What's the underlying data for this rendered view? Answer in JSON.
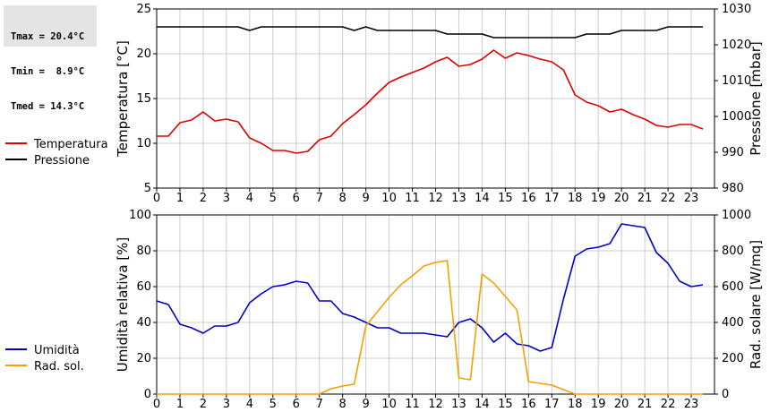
{
  "stats": {
    "tmax": "Tmax = 20.4°C",
    "tmin": "Tmin =  8.9°C",
    "tmed": "Tmed = 14.3°C"
  },
  "chart_data": [
    {
      "type": "line",
      "xlabel": "",
      "ylabel": "Temperatura [°C]",
      "y2label": "Pressione [mbar]",
      "xlim": [
        0,
        24
      ],
      "ylim": [
        5,
        25
      ],
      "y2lim": [
        980,
        1030
      ],
      "xticks": [
        "0",
        "1",
        "2",
        "3",
        "4",
        "5",
        "6",
        "7",
        "8",
        "9",
        "10",
        "11",
        "12",
        "13",
        "14",
        "15",
        "16",
        "17",
        "18",
        "19",
        "20",
        "21",
        "22",
        "23"
      ],
      "yticks": [
        "5",
        "10",
        "15",
        "20",
        "25"
      ],
      "y2ticks": [
        "980",
        "990",
        "1000",
        "1010",
        "1020",
        "1030"
      ],
      "grid": true,
      "legend": "left",
      "series": [
        {
          "name": "Temperatura",
          "color": "#dd0000",
          "axis": "left",
          "x": [
            0,
            0.5,
            1,
            1.5,
            2,
            2.5,
            3,
            3.5,
            4,
            4.5,
            5,
            5.5,
            6,
            6.5,
            7,
            7.5,
            8,
            8.5,
            9,
            9.5,
            10,
            10.5,
            11,
            11.5,
            12,
            12.5,
            13,
            13.5,
            14,
            14.5,
            15,
            15.5,
            16,
            16.5,
            17,
            17.5,
            18,
            18.5,
            19,
            19.5,
            20,
            20.5,
            21,
            21.5,
            22,
            22.5,
            23,
            23.5
          ],
          "y": [
            10.8,
            10.8,
            12.3,
            12.6,
            13.5,
            12.5,
            12.7,
            12.4,
            10.6,
            10.0,
            9.2,
            9.2,
            8.9,
            9.1,
            10.4,
            10.8,
            12.2,
            13.2,
            14.3,
            15.6,
            16.8,
            17.4,
            17.9,
            18.4,
            19.1,
            19.6,
            18.6,
            18.8,
            19.4,
            20.4,
            19.5,
            20.1,
            19.8,
            19.4,
            19.1,
            18.2,
            15.4,
            14.6,
            14.2,
            13.5,
            13.8,
            13.2,
            12.7,
            12.0,
            11.8,
            12.1,
            12.1,
            11.6
          ]
        },
        {
          "name": "Pressione",
          "color": "#000000",
          "axis": "right",
          "x": [
            0,
            0.5,
            1,
            1.5,
            2,
            2.5,
            3,
            3.5,
            4,
            4.5,
            5,
            5.5,
            6,
            6.5,
            7,
            7.5,
            8,
            8.5,
            9,
            9.5,
            10,
            10.5,
            11,
            11.5,
            12,
            12.5,
            13,
            13.5,
            14,
            14.5,
            15,
            15.5,
            16,
            16.5,
            17,
            17.5,
            18,
            18.5,
            19,
            19.5,
            20,
            20.5,
            21,
            21.5,
            22,
            22.5,
            23,
            23.5
          ],
          "y": [
            1025,
            1025,
            1025,
            1025,
            1025,
            1025,
            1025,
            1025,
            1024,
            1025,
            1025,
            1025,
            1025,
            1025,
            1025,
            1025,
            1025,
            1024,
            1025,
            1024,
            1024,
            1024,
            1024,
            1024,
            1024,
            1023,
            1023,
            1023,
            1023,
            1022,
            1022,
            1022,
            1022,
            1022,
            1022,
            1022,
            1022,
            1023,
            1023,
            1023,
            1024,
            1024,
            1024,
            1024,
            1025,
            1025,
            1025,
            1025
          ]
        }
      ]
    },
    {
      "type": "line",
      "xlabel": "",
      "ylabel": "Umidità relativa [%]",
      "y2label": "Rad. solare [W/mq]",
      "xlim": [
        0,
        24
      ],
      "ylim": [
        0,
        100
      ],
      "y2lim": [
        0,
        1000
      ],
      "xticks": [
        "0",
        "1",
        "2",
        "3",
        "4",
        "5",
        "6",
        "7",
        "8",
        "9",
        "10",
        "11",
        "12",
        "13",
        "14",
        "15",
        "16",
        "17",
        "18",
        "19",
        "20",
        "21",
        "22",
        "23"
      ],
      "yticks": [
        "0",
        "20",
        "40",
        "60",
        "80",
        "100"
      ],
      "y2ticks": [
        "0",
        "200",
        "400",
        "600",
        "800",
        "1000"
      ],
      "grid": true,
      "legend": "left",
      "series": [
        {
          "name": "Umidità",
          "color": "#0000c0",
          "axis": "left",
          "x": [
            0,
            0.5,
            1,
            1.5,
            2,
            2.5,
            3,
            3.5,
            4,
            4.5,
            5,
            5.5,
            6,
            6.5,
            7,
            7.5,
            8,
            8.5,
            9,
            9.5,
            10,
            10.5,
            11,
            11.5,
            12,
            12.5,
            13,
            13.5,
            14,
            14.5,
            15,
            15.5,
            16,
            16.5,
            17,
            17.5,
            18,
            18.5,
            19,
            19.5,
            20,
            20.5,
            21,
            21.5,
            22,
            22.5,
            23,
            23.5
          ],
          "y": [
            52,
            50,
            39,
            37,
            34,
            38,
            38,
            40,
            51,
            56,
            60,
            61,
            63,
            62,
            52,
            52,
            45,
            43,
            40,
            37,
            37,
            34,
            34,
            34,
            33,
            32,
            40,
            42,
            37,
            29,
            34,
            28,
            27,
            24,
            26,
            53,
            77,
            81,
            82,
            84,
            95,
            94,
            93,
            79,
            73,
            63,
            60,
            61
          ]
        },
        {
          "name": "Rad. sol.",
          "color": "#f5a000",
          "axis": "right",
          "x": [
            0,
            1,
            2,
            3,
            4,
            5,
            6,
            7,
            7.5,
            8,
            8.5,
            9,
            9.5,
            10,
            10.5,
            11,
            11.5,
            12,
            12.5,
            13,
            13.5,
            14,
            14.5,
            15,
            15.5,
            16,
            16.5,
            17,
            17.5,
            18,
            19,
            20,
            21,
            22,
            23,
            23.5
          ],
          "y": [
            0,
            0,
            0,
            0,
            0,
            0,
            0,
            0,
            30,
            45,
            55,
            380,
            460,
            540,
            610,
            660,
            715,
            735,
            745,
            90,
            80,
            670,
            620,
            545,
            470,
            70,
            60,
            50,
            25,
            0,
            0,
            0,
            0,
            0,
            0,
            0
          ]
        }
      ]
    }
  ]
}
